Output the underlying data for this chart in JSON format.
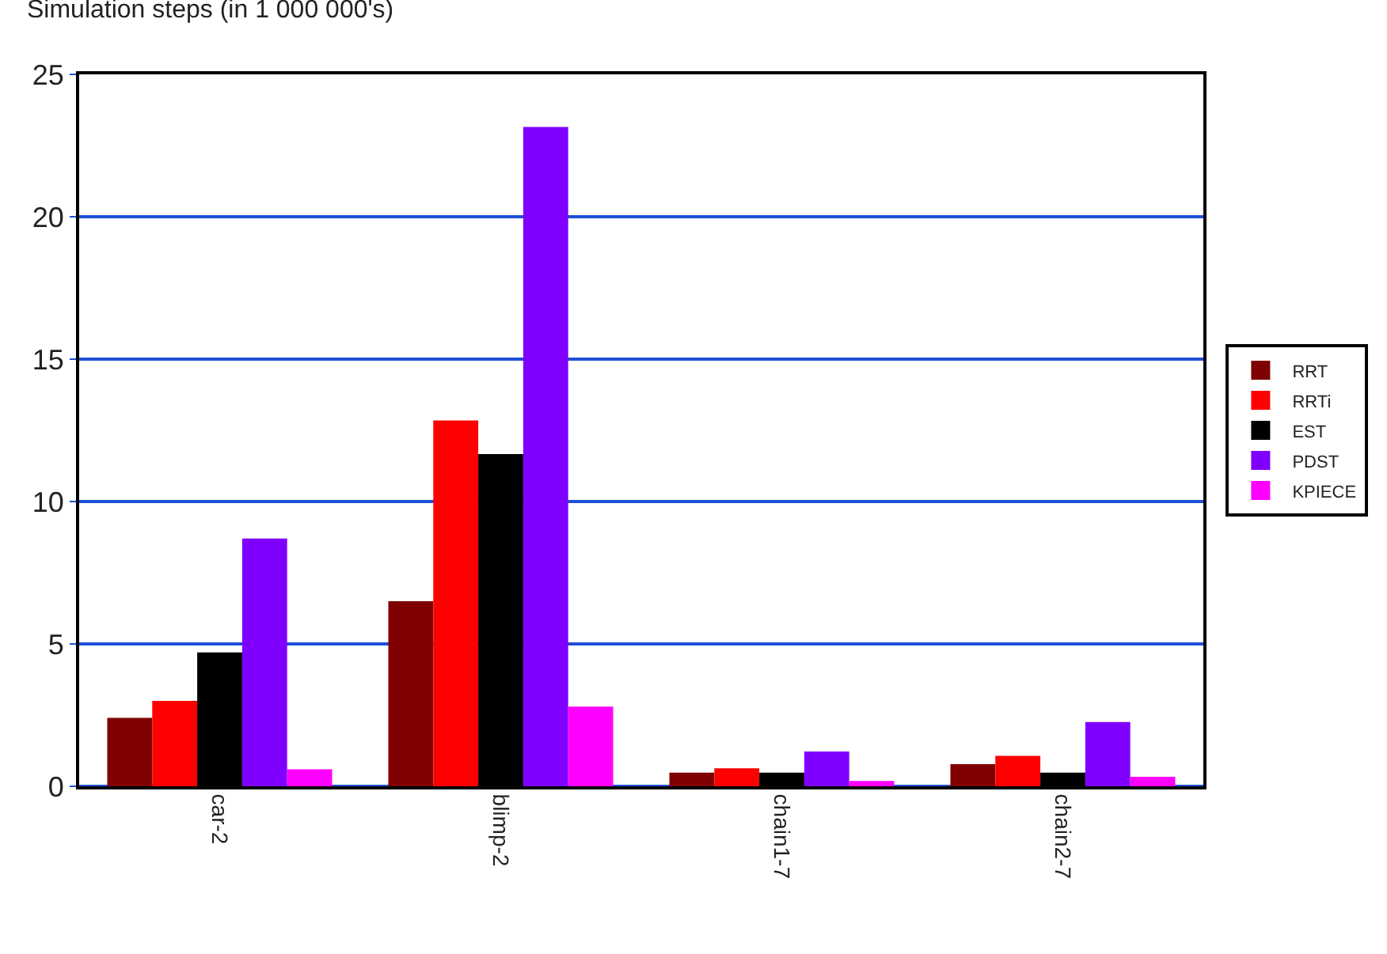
{
  "chart_data": {
    "type": "bar",
    "ylabel": "Simulation steps (in 1 000 000's)",
    "categories": [
      "car-2",
      "blimp-2",
      "chain1-7",
      "chain2-7"
    ],
    "series": [
      {
        "name": "RRT",
        "color": "#7f0000",
        "values": [
          2.4,
          6.5,
          0.48,
          0.78
        ]
      },
      {
        "name": "RRTi",
        "color": "#ff0000",
        "values": [
          3.0,
          12.85,
          0.63,
          1.07
        ]
      },
      {
        "name": "EST",
        "color": "#000000",
        "values": [
          4.7,
          11.67,
          0.48,
          0.48
        ]
      },
      {
        "name": "PDST",
        "color": "#7f00ff",
        "values": [
          8.7,
          23.15,
          1.22,
          2.26
        ]
      },
      {
        "name": "KPIECE",
        "color": "#ff00ff",
        "values": [
          0.6,
          2.8,
          0.19,
          0.33
        ]
      }
    ],
    "ylim": [
      0,
      25
    ],
    "yticks": [
      0,
      5,
      10,
      15,
      20,
      25
    ],
    "grid": "y",
    "legend": "right"
  }
}
